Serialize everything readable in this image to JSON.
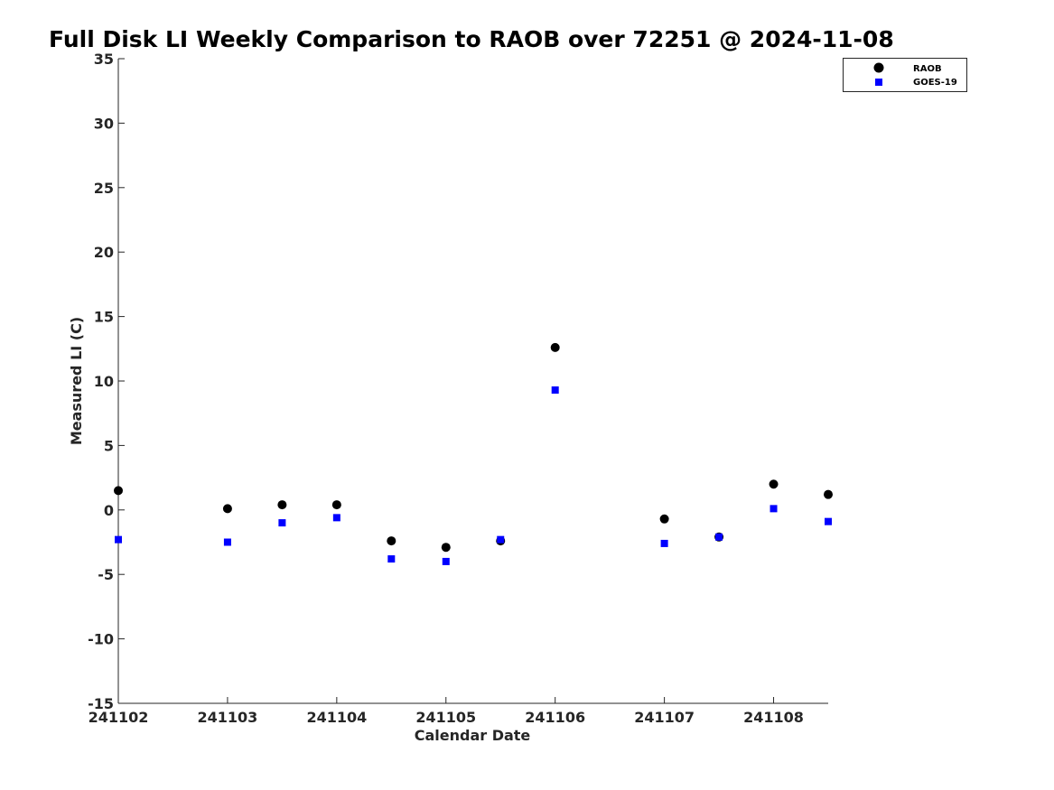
{
  "chart_data": {
    "type": "scatter",
    "title": "Full Disk LI Weekly Comparison to RAOB over 72251 @ 2024-11-08",
    "xlabel": "Calendar Date",
    "ylabel": "Measured LI (C)",
    "x_ticks": [
      "241102",
      "241103",
      "241104",
      "241105",
      "241106",
      "241107",
      "241108"
    ],
    "y_ticks": [
      -15,
      -10,
      -5,
      0,
      5,
      10,
      15,
      20,
      25,
      30,
      35
    ],
    "xlim": [
      0,
      6.5
    ],
    "ylim": [
      -15,
      35
    ],
    "grid": false,
    "legend_position": "top-right",
    "series": [
      {
        "name": "RAOB",
        "marker": "circle",
        "color": "#000000",
        "points": [
          {
            "x": 0.0,
            "y": 1.5
          },
          {
            "x": 1.0,
            "y": 0.1
          },
          {
            "x": 1.5,
            "y": 0.4
          },
          {
            "x": 2.0,
            "y": 0.4
          },
          {
            "x": 2.5,
            "y": -2.4
          },
          {
            "x": 3.0,
            "y": -2.9
          },
          {
            "x": 3.5,
            "y": -2.4
          },
          {
            "x": 4.0,
            "y": 12.6
          },
          {
            "x": 5.0,
            "y": -0.7
          },
          {
            "x": 5.5,
            "y": -2.1
          },
          {
            "x": 6.0,
            "y": 2.0
          },
          {
            "x": 6.5,
            "y": 1.2
          }
        ]
      },
      {
        "name": "GOES-19",
        "marker": "square",
        "color": "#0000ff",
        "points": [
          {
            "x": 0.0,
            "y": -2.3
          },
          {
            "x": 1.0,
            "y": -2.5
          },
          {
            "x": 1.5,
            "y": -1.0
          },
          {
            "x": 2.0,
            "y": -0.6
          },
          {
            "x": 2.5,
            "y": -3.8
          },
          {
            "x": 3.0,
            "y": -4.0
          },
          {
            "x": 3.5,
            "y": -2.3
          },
          {
            "x": 4.0,
            "y": 9.3
          },
          {
            "x": 5.0,
            "y": -2.6
          },
          {
            "x": 5.5,
            "y": -2.1
          },
          {
            "x": 6.0,
            "y": 0.1
          },
          {
            "x": 6.5,
            "y": -0.9
          }
        ]
      }
    ]
  }
}
